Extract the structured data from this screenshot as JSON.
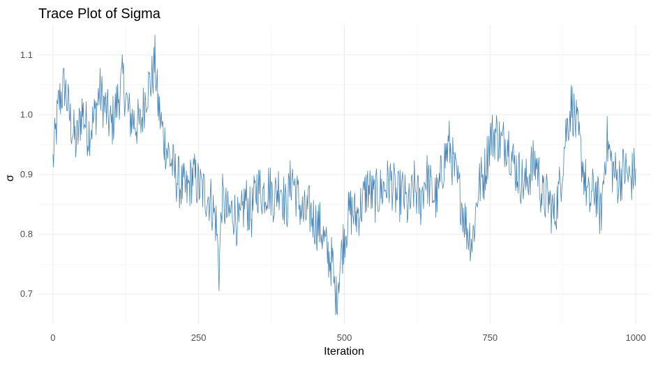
{
  "chart_data": {
    "type": "line",
    "title": "Trace Plot of Sigma",
    "xlabel": "Iteration",
    "ylabel": "σ",
    "xlim": [
      -25,
      1025
    ],
    "ylim": [
      0.65,
      1.15
    ],
    "x_ticks": [
      0,
      250,
      500,
      750,
      1000
    ],
    "x_tick_labels": [
      "0",
      "250",
      "500",
      "750",
      "1000"
    ],
    "y_ticks": [
      0.7,
      0.8,
      0.9,
      1.0,
      1.1
    ],
    "y_tick_labels": [
      "0.7",
      "0.8",
      "0.9",
      "1.0",
      "1.1"
    ],
    "grid": true,
    "legend": "none",
    "line_color": "#4682B4",
    "series": [
      {
        "x": [
          0,
          10,
          20,
          30,
          40,
          50,
          60,
          70,
          80,
          90,
          100,
          110,
          120,
          130,
          140,
          150,
          160,
          170,
          175,
          180,
          190,
          200,
          210,
          220,
          230,
          240,
          250,
          260,
          270,
          280,
          285,
          290,
          300,
          310,
          320,
          330,
          340,
          350,
          360,
          370,
          380,
          390,
          400,
          410,
          420,
          430,
          440,
          450,
          460,
          470,
          480,
          485,
          490,
          500,
          510,
          520,
          530,
          540,
          550,
          560,
          570,
          580,
          590,
          600,
          610,
          620,
          630,
          640,
          650,
          660,
          670,
          680,
          690,
          700,
          710,
          720,
          730,
          740,
          750,
          760,
          770,
          780,
          790,
          800,
          810,
          820,
          830,
          840,
          850,
          860,
          870,
          880,
          890,
          900,
          910,
          920,
          930,
          940,
          950,
          960,
          970,
          980,
          990,
          1000
        ],
        "values": [
          0.92,
          1.02,
          1.05,
          0.99,
          0.95,
          1.01,
          0.97,
          0.99,
          1.04,
          1.01,
          0.98,
          1.02,
          1.06,
          1.0,
          0.99,
          0.98,
          1.04,
          1.06,
          1.09,
          1.02,
          0.96,
          0.93,
          0.9,
          0.88,
          0.87,
          0.9,
          0.88,
          0.87,
          0.86,
          0.82,
          0.74,
          0.86,
          0.83,
          0.84,
          0.81,
          0.86,
          0.83,
          0.88,
          0.87,
          0.88,
          0.86,
          0.89,
          0.84,
          0.9,
          0.86,
          0.83,
          0.84,
          0.82,
          0.81,
          0.77,
          0.75,
          0.68,
          0.73,
          0.8,
          0.84,
          0.83,
          0.85,
          0.88,
          0.86,
          0.87,
          0.88,
          0.89,
          0.86,
          0.87,
          0.84,
          0.88,
          0.85,
          0.9,
          0.87,
          0.86,
          0.92,
          0.95,
          0.9,
          0.86,
          0.81,
          0.79,
          0.88,
          0.9,
          0.96,
          0.97,
          0.95,
          0.96,
          0.92,
          0.9,
          0.88,
          0.91,
          0.92,
          0.86,
          0.86,
          0.83,
          0.88,
          0.97,
          1.02,
          0.97,
          0.91,
          0.85,
          0.88,
          0.83,
          0.96,
          0.91,
          0.89,
          0.91,
          0.89,
          0.91
        ]
      }
    ]
  }
}
